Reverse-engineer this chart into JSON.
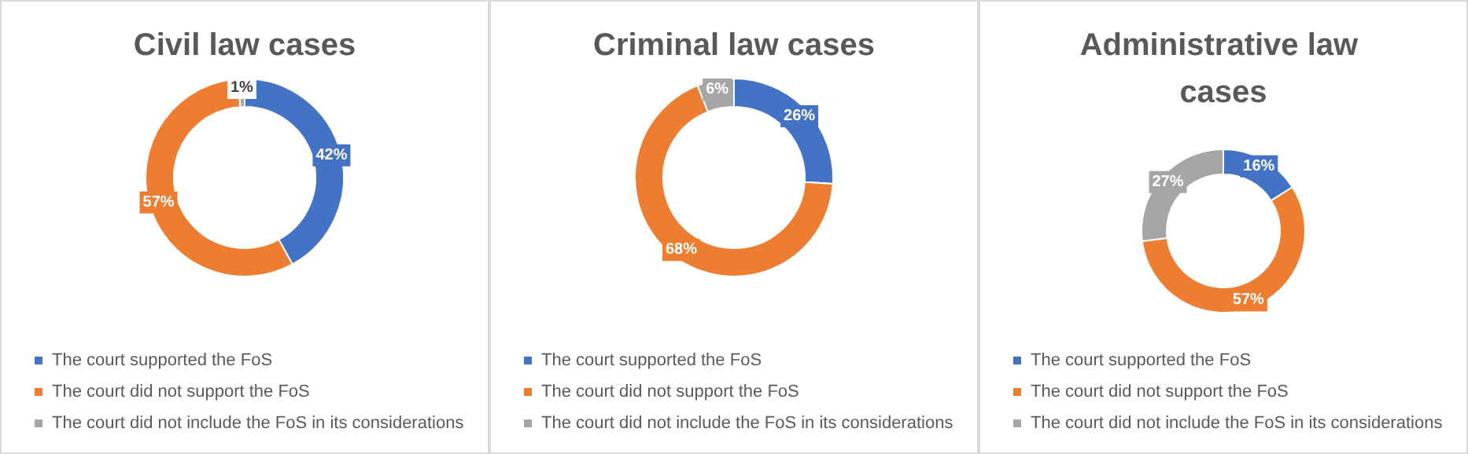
{
  "chart_data": [
    {
      "type": "donut",
      "title": "Civil law cases",
      "categories": [
        "The court supported the FoS",
        "The court did not support the FoS",
        "The court did not include the FoS in its considerations"
      ],
      "values": [
        42,
        57,
        1
      ],
      "value_labels": [
        "42%",
        "57%",
        "1%"
      ],
      "colors": [
        "#4472c4",
        "#ed7d31",
        "#a5a5a5"
      ],
      "legend": "bottom"
    },
    {
      "type": "donut",
      "title": "Criminal law cases",
      "categories": [
        "The court supported the FoS",
        "The court did not support the FoS",
        "The court did not include the FoS in its considerations"
      ],
      "values": [
        26,
        68,
        6
      ],
      "value_labels": [
        "26%",
        "68%",
        "6%"
      ],
      "colors": [
        "#4472c4",
        "#ed7d31",
        "#a5a5a5"
      ],
      "legend": "bottom"
    },
    {
      "type": "donut",
      "title": "Administrative law cases",
      "categories": [
        "The court supported the FoS",
        "The court did not support the FoS",
        "The court did not include the FoS in its considerations"
      ],
      "values": [
        16,
        57,
        27
      ],
      "value_labels": [
        "16%",
        "57%",
        "27%"
      ],
      "colors": [
        "#4472c4",
        "#ed7d31",
        "#a5a5a5"
      ],
      "legend": "bottom"
    }
  ]
}
